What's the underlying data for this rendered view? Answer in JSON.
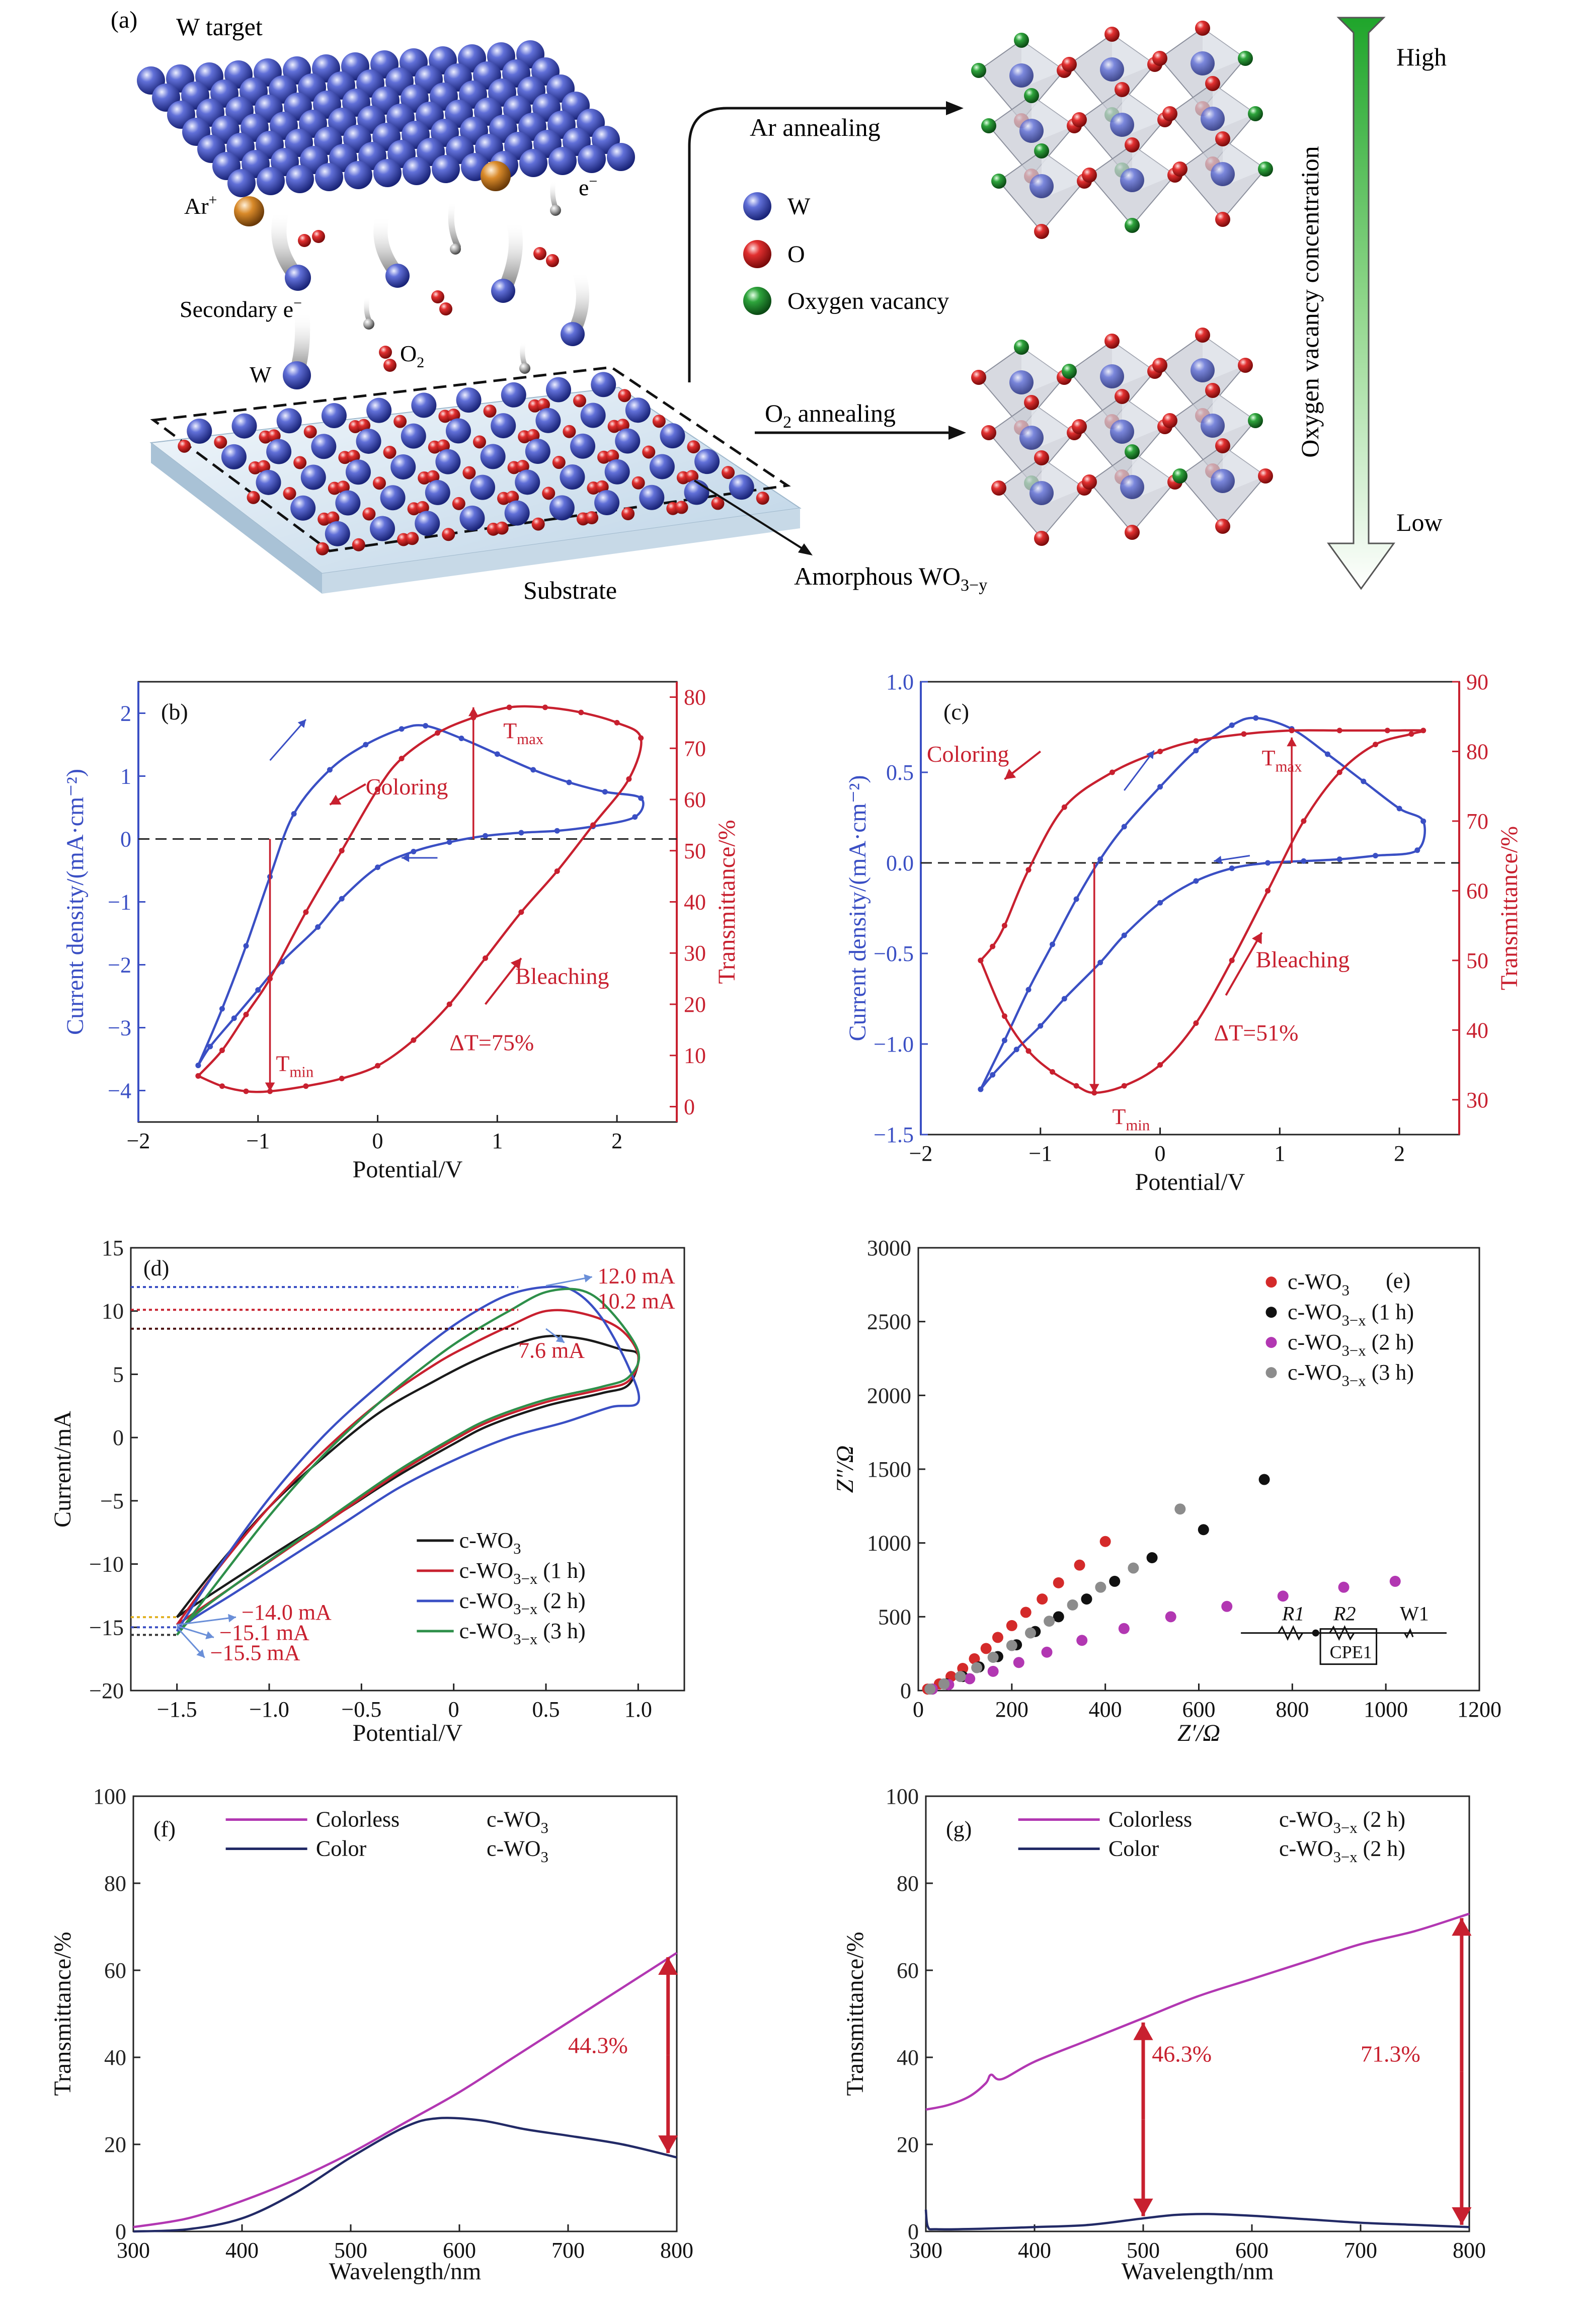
{
  "panel_a": {
    "tag": "(a)",
    "w_target": "W target",
    "ar_ion": "Ar",
    "ar_sup": "+",
    "electron": "e",
    "electron_sup": "−",
    "secondary_e": "Secondary e",
    "secondary_sup": "−",
    "w_label": "W",
    "o2_label": "O",
    "o2_sub": "2",
    "substrate": "Substrate",
    "amorphous": "Amorphous WO",
    "amorphous_sub": "3−y",
    "ar_annealing": "Ar annealing",
    "o2_annealing": "O",
    "o2_annealing_sub": "2",
    "o2_annealing_rest": " annealing",
    "legend": [
      {
        "label": "W",
        "color": "#2b3fae"
      },
      {
        "label": "O",
        "color": "#d41c1c"
      },
      {
        "label": "Oxygen vacancy",
        "color": "#1f8f2f"
      }
    ],
    "vacancy_axis": "Oxygen vacancy concentration",
    "high": "High",
    "low": "Low"
  },
  "chart_data": [
    {
      "panel": "b",
      "type": "line",
      "tag": "(b)",
      "xlabel": "Potential/V",
      "ylabel_left": "Current density/(mA·cm⁻²)",
      "ylabel_right": "Transmittance/%",
      "xlim": [
        -2,
        2.5
      ],
      "ylim_left": [
        -4.5,
        2.5
      ],
      "ylim_right": [
        -3,
        83
      ],
      "xticks": [
        "−2",
        "−1",
        "0",
        "1",
        "2"
      ],
      "yticks_left": [
        "−4",
        "−3",
        "−2",
        "−1",
        "0",
        "1",
        "2"
      ],
      "yticks_right": [
        "0",
        "10",
        "20",
        "30",
        "40",
        "50",
        "60",
        "70",
        "80"
      ],
      "annotations": {
        "coloring": "Coloring",
        "bleaching": "Bleaching",
        "tmax": "T",
        "tmax_sub": "max",
        "tmin": "T",
        "tmin_sub": "min",
        "delta": "ΔT=75%"
      },
      "series": [
        {
          "axis": "left",
          "color": "#3a4fc4",
          "x": [
            -1.5,
            -1.3,
            -1.1,
            -0.9,
            -0.7,
            -0.4,
            -0.1,
            0.2,
            0.4,
            0.7,
            1.0,
            1.3,
            1.6,
            1.9,
            2.2,
            2.15,
            1.8,
            1.5,
            1.2,
            0.9,
            0.6,
            0.3,
            0.0,
            -0.3,
            -0.5,
            -0.8,
            -1.0,
            -1.2,
            -1.4,
            -1.5
          ],
          "y": [
            -3.6,
            -2.7,
            -1.7,
            -0.6,
            0.4,
            1.1,
            1.5,
            1.75,
            1.8,
            1.6,
            1.35,
            1.1,
            0.9,
            0.75,
            0.65,
            0.35,
            0.2,
            0.13,
            0.1,
            0.05,
            -0.05,
            -0.2,
            -0.45,
            -0.95,
            -1.4,
            -1.95,
            -2.4,
            -2.85,
            -3.3,
            -3.6
          ]
        },
        {
          "axis": "right",
          "color": "#c8202f",
          "x": [
            -1.5,
            -1.3,
            -1.1,
            -0.9,
            -0.6,
            -0.3,
            0.0,
            0.3,
            0.6,
            0.9,
            1.2,
            1.5,
            1.8,
            2.1,
            2.2,
            2.0,
            1.7,
            1.4,
            1.1,
            0.8,
            0.5,
            0.2,
            0.0,
            -0.3,
            -0.6,
            -0.9,
            -1.1,
            -1.3,
            -1.5
          ],
          "y": [
            6,
            4,
            3,
            3,
            4,
            5.5,
            8,
            13,
            20,
            29,
            38,
            46,
            55,
            64,
            72,
            75,
            77,
            78,
            78,
            76,
            73,
            68,
            62,
            50,
            38,
            25,
            18,
            11,
            6
          ]
        }
      ]
    },
    {
      "panel": "c",
      "type": "line",
      "tag": "(c)",
      "xlabel": "Potential/V",
      "ylabel_left": "Current density/(mA·cm⁻²)",
      "ylabel_right": "Transmittance/%",
      "xlim": [
        -2,
        2.5
      ],
      "ylim_left": [
        -1.5,
        1.0
      ],
      "ylim_right": [
        25,
        90
      ],
      "xticks": [
        "−2",
        "−1",
        "0",
        "1",
        "2"
      ],
      "yticks_left": [
        "−1.5",
        "−1.0",
        "−0.5",
        "0.0",
        "0.5",
        "1.0"
      ],
      "yticks_right": [
        "30",
        "40",
        "50",
        "60",
        "70",
        "80",
        "90"
      ],
      "annotations": {
        "coloring": "Coloring",
        "bleaching": "Bleaching",
        "tmax": "T",
        "tmax_sub": "max",
        "tmin": "T",
        "tmin_sub": "min",
        "delta": "ΔT=51%"
      },
      "series": [
        {
          "axis": "left",
          "color": "#3a4fc4",
          "x": [
            -1.5,
            -1.3,
            -1.1,
            -0.9,
            -0.7,
            -0.5,
            -0.3,
            0.0,
            0.3,
            0.6,
            0.8,
            1.1,
            1.4,
            1.7,
            2.0,
            2.2,
            2.15,
            1.8,
            1.5,
            1.2,
            0.9,
            0.6,
            0.3,
            0.0,
            -0.3,
            -0.5,
            -0.8,
            -1.0,
            -1.2,
            -1.4,
            -1.5
          ],
          "y": [
            -1.25,
            -0.98,
            -0.7,
            -0.45,
            -0.2,
            0.02,
            0.2,
            0.42,
            0.62,
            0.76,
            0.8,
            0.74,
            0.6,
            0.45,
            0.3,
            0.23,
            0.07,
            0.04,
            0.02,
            0.01,
            0.0,
            -0.03,
            -0.1,
            -0.22,
            -0.4,
            -0.55,
            -0.75,
            -0.9,
            -1.03,
            -1.17,
            -1.25
          ]
        },
        {
          "axis": "right",
          "color": "#c8202f",
          "x": [
            -1.5,
            -1.3,
            -1.1,
            -0.9,
            -0.7,
            -0.55,
            -0.3,
            0.0,
            0.3,
            0.6,
            0.9,
            1.2,
            1.5,
            1.8,
            2.1,
            2.2,
            1.9,
            1.5,
            1.1,
            0.7,
            0.3,
            0.0,
            -0.4,
            -0.8,
            -1.1,
            -1.3,
            -1.4,
            -1.5
          ],
          "y": [
            50,
            42,
            37,
            34,
            32,
            31,
            32,
            35,
            41,
            50,
            60,
            70,
            77,
            81,
            82.5,
            83,
            83,
            83,
            83,
            82.5,
            81.5,
            80,
            77,
            72,
            63,
            55,
            52,
            50
          ]
        }
      ]
    },
    {
      "panel": "d",
      "type": "line",
      "tag": "(d)",
      "xlabel": "Potential/V",
      "ylabel": "Current/mA",
      "xlim": [
        -1.75,
        1.25
      ],
      "ylim": [
        -20,
        15
      ],
      "xticks": [
        "−1.5",
        "−1.0",
        "−0.5",
        "0",
        "0.5",
        "1.0"
      ],
      "yticks": [
        "−20",
        "−15",
        "−10",
        "−5",
        "0",
        "5",
        "10",
        "15"
      ],
      "annotations": {
        "top1": "12.0 mA",
        "top2": "10.2 mA",
        "top3": "7.6 mA",
        "bot1": "−14.0 mA",
        "bot2": "−15.1 mA",
        "bot3": "−15.5 mA"
      },
      "legend": [
        {
          "name": "c-WO",
          "sub": "3",
          "suffix": ""
        },
        {
          "name": "c-WO",
          "sub": "3−x",
          "suffix": " (1 h)"
        },
        {
          "name": "c-WO",
          "sub": "3−x",
          "suffix": " (2 h)"
        },
        {
          "name": "c-WO",
          "sub": "3−x",
          "suffix": " (3 h)"
        }
      ],
      "series": [
        {
          "color": "#1a1a1a",
          "x": [
            -1.5,
            -1.3,
            -1.0,
            -0.7,
            -0.4,
            -0.1,
            0.1,
            0.3,
            0.5,
            0.7,
            0.9,
            1.0,
            0.95,
            0.8,
            0.5,
            0.2,
            0.0,
            -0.3,
            -0.6,
            -0.9,
            -1.2,
            -1.4,
            -1.5
          ],
          "y": [
            -14.2,
            -10.5,
            -5.5,
            -1.5,
            2.0,
            4.5,
            6.0,
            7.2,
            8.0,
            7.8,
            7.0,
            6.5,
            4.2,
            3.5,
            2.5,
            1.0,
            -0.5,
            -3.0,
            -5.8,
            -8.5,
            -11.3,
            -13.2,
            -14.2
          ]
        },
        {
          "color": "#c8202f",
          "x": [
            -1.5,
            -1.3,
            -1.0,
            -0.7,
            -0.4,
            -0.1,
            0.1,
            0.3,
            0.5,
            0.7,
            0.9,
            1.0,
            0.95,
            0.8,
            0.5,
            0.2,
            0.0,
            -0.3,
            -0.6,
            -0.9,
            -1.2,
            -1.4,
            -1.5
          ],
          "y": [
            -14.8,
            -10.8,
            -5.5,
            -1.0,
            2.8,
            5.8,
            7.4,
            8.8,
            10.0,
            9.8,
            8.6,
            6.5,
            4.5,
            3.8,
            2.8,
            1.3,
            -0.2,
            -2.8,
            -5.8,
            -8.8,
            -11.8,
            -13.8,
            -14.8
          ]
        },
        {
          "color": "#3a4fc4",
          "x": [
            -1.5,
            -1.3,
            -1.0,
            -0.7,
            -0.4,
            -0.1,
            0.1,
            0.3,
            0.5,
            0.65,
            0.8,
            0.95,
            1.0,
            0.85,
            0.6,
            0.3,
            0.0,
            -0.3,
            -0.6,
            -0.9,
            -1.2,
            -1.4,
            -1.5
          ],
          "y": [
            -15.3,
            -10.8,
            -4.8,
            0.2,
            4.2,
            7.8,
            9.8,
            11.3,
            11.9,
            11.6,
            9.5,
            5.5,
            2.8,
            2.4,
            1.2,
            0.0,
            -1.8,
            -4.0,
            -6.8,
            -9.6,
            -12.4,
            -14.2,
            -15.3
          ]
        },
        {
          "color": "#2e8f4a",
          "x": [
            -1.5,
            -1.3,
            -1.0,
            -0.7,
            -0.4,
            -0.1,
            0.1,
            0.3,
            0.5,
            0.7,
            0.85,
            1.0,
            0.95,
            0.8,
            0.5,
            0.2,
            0.0,
            -0.3,
            -0.6,
            -0.9,
            -1.2,
            -1.4,
            -1.5
          ],
          "y": [
            -15.6,
            -11.8,
            -6.2,
            -1.3,
            2.8,
            6.3,
            8.3,
            10.0,
            11.5,
            11.6,
            10.0,
            6.8,
            4.8,
            4.0,
            3.0,
            1.5,
            0.0,
            -2.6,
            -5.6,
            -8.7,
            -11.8,
            -14.0,
            -15.6
          ]
        }
      ]
    },
    {
      "panel": "e",
      "type": "scatter",
      "tag": "(e)",
      "xlabel": "Z′/Ω",
      "ylabel": "Z″/Ω",
      "xlim": [
        0,
        1200
      ],
      "ylim": [
        0,
        3000
      ],
      "xticks": [
        "0",
        "200",
        "400",
        "600",
        "800",
        "1000",
        "1200"
      ],
      "yticks": [
        "0",
        "500",
        "1000",
        "1500",
        "2000",
        "2500",
        "3000"
      ],
      "circuit": {
        "r1": "R1",
        "r2": "R2",
        "cpe": "CPE1",
        "w": "W1"
      },
      "legend": [
        {
          "name": "c-WO",
          "sub": "3",
          "suffix": ""
        },
        {
          "name": "c-WO",
          "sub": "3−x",
          "suffix": " (1 h)"
        },
        {
          "name": "c-WO",
          "sub": "3−x",
          "suffix": " (2 h)"
        },
        {
          "name": "c-WO",
          "sub": "3−x",
          "suffix": " (3 h)"
        }
      ],
      "series": [
        {
          "color": "#d42a2a",
          "x": [
            20,
            45,
            70,
            95,
            120,
            145,
            170,
            200,
            230,
            265,
            300,
            345,
            400
          ],
          "y": [
            10,
            45,
            95,
            150,
            215,
            285,
            360,
            440,
            530,
            620,
            730,
            850,
            1010
          ]
        },
        {
          "color": "#111111",
          "x": [
            30,
            60,
            95,
            130,
            170,
            210,
            250,
            300,
            360,
            420,
            500,
            610,
            740
          ],
          "y": [
            10,
            45,
            95,
            160,
            230,
            310,
            400,
            500,
            620,
            740,
            900,
            1090,
            1430
          ]
        },
        {
          "color": "#b237b2",
          "x": [
            30,
            65,
            110,
            160,
            215,
            275,
            350,
            440,
            540,
            660,
            780,
            910,
            1020
          ],
          "y": [
            10,
            40,
            80,
            130,
            190,
            260,
            340,
            420,
            500,
            570,
            640,
            700,
            740
          ]
        },
        {
          "color": "#8c8c8c",
          "x": [
            25,
            55,
            90,
            125,
            160,
            200,
            240,
            280,
            330,
            390,
            460,
            560
          ],
          "y": [
            10,
            45,
            95,
            155,
            225,
            305,
            390,
            470,
            580,
            700,
            830,
            1230
          ]
        }
      ]
    },
    {
      "panel": "f",
      "type": "line",
      "tag": "(f)",
      "xlabel": "Wavelength/nm",
      "ylabel": "Transmittance/%",
      "xlim": [
        300,
        800
      ],
      "ylim": [
        0,
        100
      ],
      "xticks": [
        "300",
        "400",
        "500",
        "600",
        "700",
        "800"
      ],
      "yticks": [
        "0",
        "20",
        "40",
        "60",
        "80",
        "100"
      ],
      "annotations": {
        "delta": "44.3%"
      },
      "legend": [
        {
          "state": "Colorless",
          "sample": "c-WO",
          "sub": "3",
          "suffix": ""
        },
        {
          "state": "Color",
          "sample": "c-WO",
          "sub": "3",
          "suffix": ""
        }
      ],
      "series": [
        {
          "color": "#b237b2",
          "x": [
            300,
            350,
            400,
            450,
            500,
            550,
            600,
            650,
            700,
            750,
            800
          ],
          "y": [
            1,
            3,
            7,
            12,
            18,
            25,
            32,
            40,
            48,
            56,
            64
          ]
        },
        {
          "color": "#222a66",
          "x": [
            300,
            350,
            400,
            450,
            500,
            550,
            580,
            620,
            660,
            700,
            750,
            800
          ],
          "y": [
            0,
            0.5,
            3,
            9,
            17,
            24,
            26,
            25.5,
            23.5,
            22,
            20,
            17
          ]
        }
      ]
    },
    {
      "panel": "g",
      "type": "line",
      "tag": "(g)",
      "xlabel": "Wavelength/nm",
      "ylabel": "Transmittance/%",
      "xlim": [
        300,
        800
      ],
      "ylim": [
        0,
        100
      ],
      "xticks": [
        "300",
        "400",
        "500",
        "600",
        "700",
        "800"
      ],
      "yticks": [
        "0",
        "20",
        "40",
        "60",
        "80",
        "100"
      ],
      "annotations": {
        "delta1": "46.3%",
        "delta2": "71.3%"
      },
      "legend": [
        {
          "state": "Colorless",
          "sample": "c-WO",
          "sub": "3−x",
          "suffix": " (2 h)"
        },
        {
          "state": "Color",
          "sample": "c-WO",
          "sub": "3−x",
          "suffix": " (2 h)"
        }
      ],
      "series": [
        {
          "color": "#b237b2",
          "x": [
            300,
            320,
            340,
            355,
            360,
            370,
            400,
            450,
            500,
            550,
            600,
            650,
            700,
            750,
            800
          ],
          "y": [
            28,
            29,
            31,
            34,
            36,
            35,
            39,
            44,
            49,
            54,
            58,
            62,
            66,
            69,
            73
          ]
        },
        {
          "color": "#222a66",
          "x": [
            300,
            302,
            310,
            350,
            400,
            450,
            500,
            530,
            560,
            600,
            650,
            700,
            750,
            800
          ],
          "y": [
            5,
            1,
            0.5,
            0.6,
            1,
            1.5,
            3,
            3.8,
            4,
            3.6,
            2.8,
            2,
            1.5,
            1
          ]
        }
      ]
    }
  ]
}
